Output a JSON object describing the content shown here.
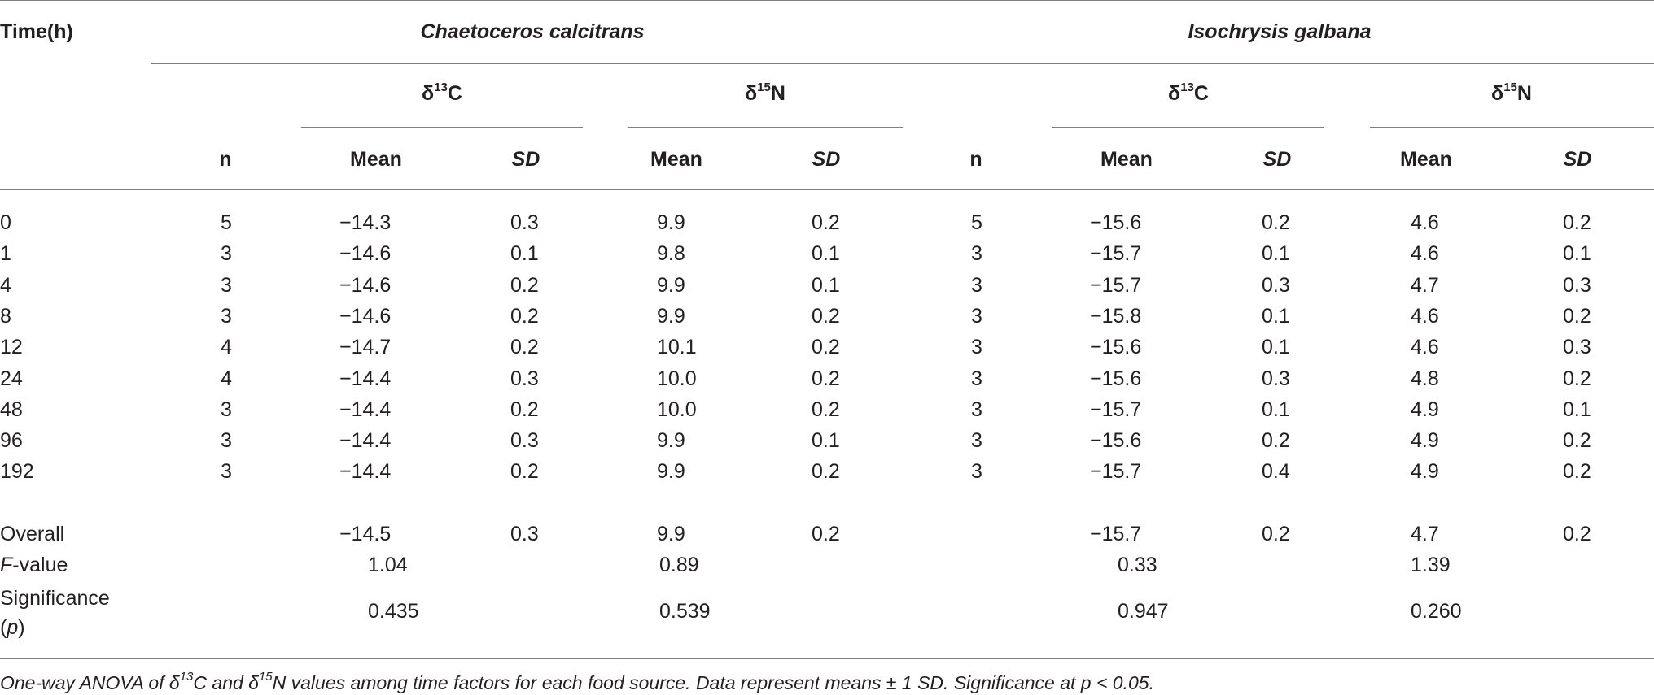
{
  "header": {
    "time_label": "Time(h)",
    "species": [
      "Chaetoceros calcitrans",
      "Isochrysis galbana"
    ],
    "isotope_prefix": "δ",
    "isotopes": [
      {
        "mass": "13",
        "element": "C"
      },
      {
        "mass": "15",
        "element": "N"
      }
    ],
    "n_label": "n",
    "mean_label": "Mean",
    "sd_label": "SD"
  },
  "rows": [
    {
      "time": "0",
      "cc_n": "5",
      "cc_c_mean": "−14.3",
      "cc_c_sd": "0.3",
      "cc_n_mean": "9.9",
      "cc_n_sd": "0.2",
      "ig_n": "5",
      "ig_c_mean": "−15.6",
      "ig_c_sd": "0.2",
      "ig_n_mean": "4.6",
      "ig_n_sd": "0.2"
    },
    {
      "time": "1",
      "cc_n": "3",
      "cc_c_mean": "−14.6",
      "cc_c_sd": "0.1",
      "cc_n_mean": "9.8",
      "cc_n_sd": "0.1",
      "ig_n": "3",
      "ig_c_mean": "−15.7",
      "ig_c_sd": "0.1",
      "ig_n_mean": "4.6",
      "ig_n_sd": "0.1"
    },
    {
      "time": "4",
      "cc_n": "3",
      "cc_c_mean": "−14.6",
      "cc_c_sd": "0.2",
      "cc_n_mean": "9.9",
      "cc_n_sd": "0.1",
      "ig_n": "3",
      "ig_c_mean": "−15.7",
      "ig_c_sd": "0.3",
      "ig_n_mean": "4.7",
      "ig_n_sd": "0.3"
    },
    {
      "time": "8",
      "cc_n": "3",
      "cc_c_mean": "−14.6",
      "cc_c_sd": "0.2",
      "cc_n_mean": "9.9",
      "cc_n_sd": "0.2",
      "ig_n": "3",
      "ig_c_mean": "−15.8",
      "ig_c_sd": "0.1",
      "ig_n_mean": "4.6",
      "ig_n_sd": "0.2"
    },
    {
      "time": "12",
      "cc_n": "4",
      "cc_c_mean": "−14.7",
      "cc_c_sd": "0.2",
      "cc_n_mean": "10.1",
      "cc_n_sd": "0.2",
      "ig_n": "3",
      "ig_c_mean": "−15.6",
      "ig_c_sd": "0.1",
      "ig_n_mean": "4.6",
      "ig_n_sd": "0.3"
    },
    {
      "time": "24",
      "cc_n": "4",
      "cc_c_mean": "−14.4",
      "cc_c_sd": "0.3",
      "cc_n_mean": "10.0",
      "cc_n_sd": "0.2",
      "ig_n": "3",
      "ig_c_mean": "−15.6",
      "ig_c_sd": "0.3",
      "ig_n_mean": "4.8",
      "ig_n_sd": "0.2"
    },
    {
      "time": "48",
      "cc_n": "3",
      "cc_c_mean": "−14.4",
      "cc_c_sd": "0.2",
      "cc_n_mean": "10.0",
      "cc_n_sd": "0.2",
      "ig_n": "3",
      "ig_c_mean": "−15.7",
      "ig_c_sd": "0.1",
      "ig_n_mean": "4.9",
      "ig_n_sd": "0.1"
    },
    {
      "time": "96",
      "cc_n": "3",
      "cc_c_mean": "−14.4",
      "cc_c_sd": "0.3",
      "cc_n_mean": "9.9",
      "cc_n_sd": "0.1",
      "ig_n": "3",
      "ig_c_mean": "−15.6",
      "ig_c_sd": "0.2",
      "ig_n_mean": "4.9",
      "ig_n_sd": "0.2"
    },
    {
      "time": "192",
      "cc_n": "3",
      "cc_c_mean": "−14.4",
      "cc_c_sd": "0.2",
      "cc_n_mean": "9.9",
      "cc_n_sd": "0.2",
      "ig_n": "3",
      "ig_c_mean": "−15.7",
      "ig_c_sd": "0.4",
      "ig_n_mean": "4.9",
      "ig_n_sd": "0.2"
    }
  ],
  "overall": {
    "label": "Overall",
    "cc_c_mean": "−14.5",
    "cc_c_sd": "0.3",
    "cc_n_mean": "9.9",
    "cc_n_sd": "0.2",
    "ig_c_mean": "−15.7",
    "ig_c_sd": "0.2",
    "ig_n_mean": "4.7",
    "ig_n_sd": "0.2"
  },
  "fvalue": {
    "label_italic": "F",
    "label_rest": "-value",
    "values": [
      "1.04",
      "0.89",
      "0.33",
      "1.39"
    ]
  },
  "significance": {
    "label_line1": "Significance",
    "label_p": "p",
    "values": [
      "0.435",
      "0.539",
      "0.947",
      "0.260"
    ]
  },
  "footnote": {
    "part1": "One-way ANOVA of δ",
    "sup1": "13",
    "part2": "C and δ",
    "sup2": "15",
    "part3": "N values among time factors for each food source. Data represent means ± 1 SD. Significance at p < 0.05."
  }
}
